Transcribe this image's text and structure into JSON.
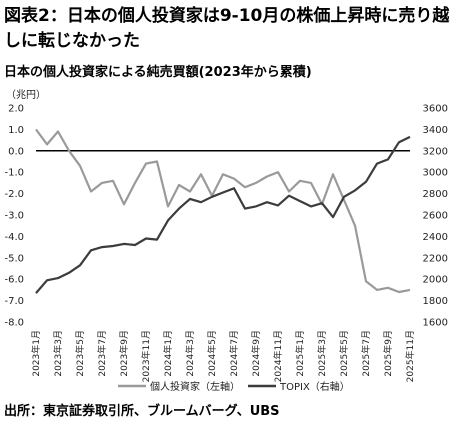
{
  "title": "図表2：日本の個人投資家は9-10月の株価上昇時に売り越しに転じなかった",
  "source": "出所：東京証券取引所、ブルームバーグ、UBS",
  "chart_data": {
    "type": "line",
    "title": "日本の個人投資家による純売買額(2023年から累積)",
    "left_unit": "（兆円）",
    "left_axis": {
      "min": -8.0,
      "max": 2.0,
      "ticks": [
        "2.0",
        "1.0",
        "0.0",
        "-1.0",
        "-2.0",
        "-3.0",
        "-4.0",
        "-5.0",
        "-6.0",
        "-7.0",
        "-8.0"
      ]
    },
    "right_axis": {
      "min": 1600,
      "max": 3600,
      "ticks": [
        "3600",
        "3400",
        "3200",
        "3000",
        "2800",
        "2600",
        "2400",
        "2200",
        "2000",
        "1800",
        "1600"
      ]
    },
    "x_range": [
      "2023-01",
      "2025-11"
    ],
    "x_ticks": [
      "2023年1月",
      "2023年3月",
      "2023年5月",
      "2023年7月",
      "2023年9月",
      "2023年11月",
      "2024年1月",
      "2024年3月",
      "2024年5月",
      "2024年7月",
      "2024年9月",
      "2024年11月",
      "2025年1月",
      "2025年3月",
      "2025年5月",
      "2025年7月",
      "2025年9月",
      "2025年11月"
    ],
    "legend_position": "bottom",
    "zero_line": true,
    "series": [
      {
        "name": "個人投資家（左軸）",
        "axis": "left",
        "color": "#9a9a9a",
        "x": [
          "2023-01",
          "2023-02",
          "2023-03",
          "2023-04",
          "2023-05",
          "2023-06",
          "2023-07",
          "2023-08",
          "2023-09",
          "2023-10",
          "2023-11",
          "2023-12",
          "2024-01",
          "2024-02",
          "2024-03",
          "2024-04",
          "2024-05",
          "2024-06",
          "2024-07",
          "2024-08",
          "2024-09",
          "2024-10",
          "2024-11",
          "2024-12",
          "2025-01",
          "2025-02",
          "2025-03",
          "2025-04",
          "2025-05",
          "2025-06",
          "2025-07",
          "2025-08",
          "2025-09",
          "2025-10",
          "2025-11"
        ],
        "values": [
          1.0,
          0.3,
          0.9,
          0.0,
          -0.7,
          -1.9,
          -1.5,
          -1.4,
          -2.5,
          -1.5,
          -0.6,
          -0.5,
          -2.6,
          -1.6,
          -1.9,
          -1.1,
          -2.1,
          -1.1,
          -1.3,
          -1.7,
          -1.5,
          -1.2,
          -1.0,
          -1.9,
          -1.4,
          -1.5,
          -2.5,
          -1.1,
          -2.3,
          -3.5,
          -6.1,
          -6.5,
          -6.4,
          -6.6,
          -6.5
        ]
      },
      {
        "name": "TOPIX（右軸）",
        "axis": "right",
        "color": "#3c3c3c",
        "x": [
          "2023-01",
          "2023-02",
          "2023-03",
          "2023-04",
          "2023-05",
          "2023-06",
          "2023-07",
          "2023-08",
          "2023-09",
          "2023-10",
          "2023-11",
          "2023-12",
          "2024-01",
          "2024-02",
          "2024-03",
          "2024-04",
          "2024-05",
          "2024-06",
          "2024-07",
          "2024-08",
          "2024-09",
          "2024-10",
          "2024-11",
          "2024-12",
          "2025-01",
          "2025-02",
          "2025-03",
          "2025-04",
          "2025-05",
          "2025-06",
          "2025-07",
          "2025-08",
          "2025-09",
          "2025-10",
          "2025-11"
        ],
        "values": [
          1870,
          1990,
          2010,
          2060,
          2130,
          2270,
          2300,
          2310,
          2330,
          2320,
          2380,
          2370,
          2550,
          2660,
          2750,
          2720,
          2770,
          2810,
          2850,
          2660,
          2680,
          2720,
          2690,
          2780,
          2730,
          2680,
          2710,
          2580,
          2770,
          2830,
          2910,
          3080,
          3120,
          3280,
          3330
        ]
      }
    ]
  }
}
